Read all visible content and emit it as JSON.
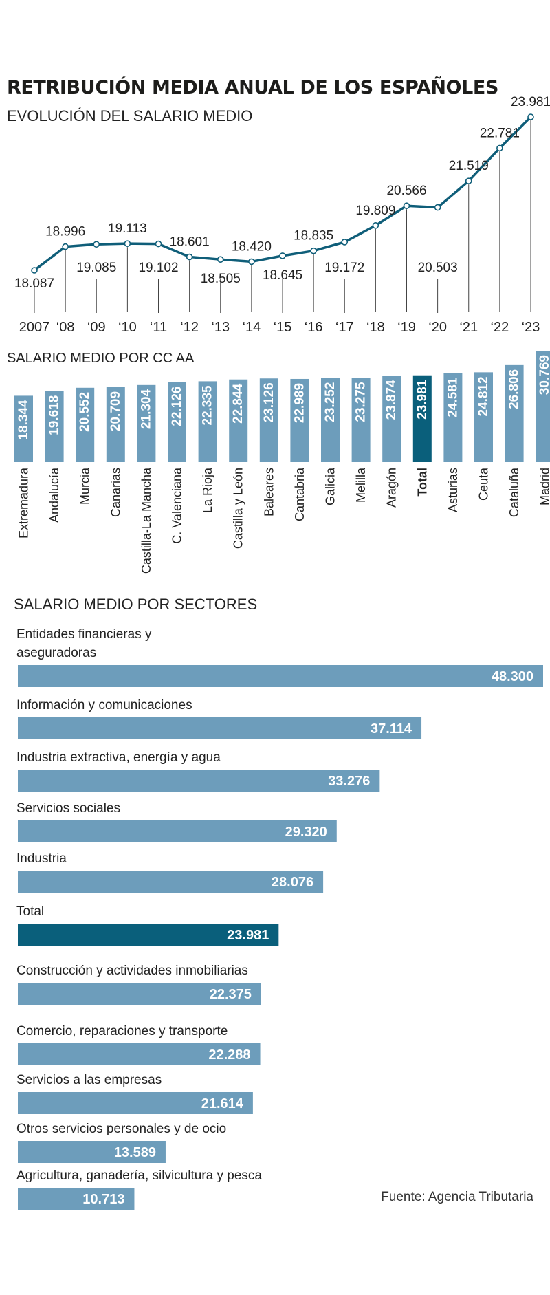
{
  "header": {
    "title": "RETRIBUCIÓN MEDIA ANUAL DE LOS ESPAÑOLES",
    "subtitle": "EVOLUCIÓN DEL SALARIO MEDIO"
  },
  "colors": {
    "line": "#0f5e79",
    "bar": "#6d9dbb",
    "highlight": "#0a5f7b",
    "label_on_bar": "#ffffff",
    "text": "#1d1d1b"
  },
  "source": "Fuente: Agencia Tributaria",
  "chart_data": [
    {
      "type": "line",
      "title": "EVOLUCIÓN DEL SALARIO MEDIO",
      "x": [
        "2007",
        "‘08",
        "‘09",
        "‘10",
        "‘11",
        "‘12",
        "‘13",
        "‘14",
        "‘15",
        "‘16",
        "‘17",
        "‘18",
        "‘19",
        "‘20",
        "‘21",
        "‘22",
        "‘23"
      ],
      "values": [
        18087,
        18996,
        19085,
        19113,
        19102,
        18601,
        18505,
        18420,
        18645,
        18835,
        19172,
        19809,
        20566,
        20503,
        21519,
        22781,
        23981
      ],
      "labels": [
        "18.087",
        "18.996",
        "19.085",
        "19.113",
        "19.102",
        "18.601",
        "18.505",
        "18.420",
        "18.645",
        "18.835",
        "19.172",
        "19.809",
        "20.566",
        "20.503",
        "21.519",
        "22.781",
        "23.981"
      ],
      "label_positions": [
        "below",
        "above",
        "below",
        "above",
        "below",
        "above",
        "below",
        "above",
        "below",
        "above",
        "below",
        "above",
        "above",
        "below",
        "above",
        "above",
        "above"
      ],
      "xlabel": "",
      "ylabel": "",
      "ylim": [
        18000,
        24000
      ]
    },
    {
      "type": "bar",
      "title": "SALARIO MEDIO POR CC AA",
      "orientation": "vertical",
      "categories": [
        "Extremadura",
        "Andalucía",
        "Murcia",
        "Canarias",
        "Castilla-La Mancha",
        "C. Valenciana",
        "La Rioja",
        "Castilla y León",
        "Baleares",
        "Cantabria",
        "Galicia",
        "Melilla",
        "Aragón",
        "Total",
        "Asturias",
        "Ceuta",
        "Cataluña",
        "Madrid"
      ],
      "values": [
        18344,
        19618,
        20552,
        20709,
        21304,
        22126,
        22335,
        22844,
        23126,
        22989,
        23252,
        23275,
        23874,
        23981,
        24581,
        24812,
        26806,
        30769
      ],
      "labels": [
        "18.344",
        "19.618",
        "20.552",
        "20.709",
        "21.304",
        "22.126",
        "22.335",
        "22.844",
        "23.126",
        "22.989",
        "23.252",
        "23.275",
        "23.874",
        "23.981",
        "24.581",
        "24.812",
        "26.806",
        "30.769"
      ],
      "highlight": "Total",
      "ylim": [
        0,
        31000
      ]
    },
    {
      "type": "bar",
      "title": "SALARIO MEDIO POR SECTORES",
      "orientation": "horizontal",
      "categories": [
        "Entidades financieras y aseguradoras",
        "Información y comunicaciones",
        "Industria extractiva, energía y agua",
        "Servicios sociales",
        "Industria",
        "Total",
        "Construcción y actividades inmobiliarias",
        "Comercio, reparaciones y transporte",
        "Servicios a las empresas",
        "Otros servicios personales y de ocio",
        "Agricultura, ganadería, silvicultura y pesca"
      ],
      "category_lines": [
        [
          "Entidades financieras y",
          "aseguradoras"
        ],
        [
          "Información y comunicaciones"
        ],
        [
          "Industria extractiva, energía y agua"
        ],
        [
          "Servicios sociales"
        ],
        [
          "Industria"
        ],
        [
          "Total"
        ],
        [
          "Construcción y actividades inmobiliarias"
        ],
        [
          "Comercio, reparaciones y transporte"
        ],
        [
          "Servicios a las empresas"
        ],
        [
          "Otros servicios personales y de ocio"
        ],
        [
          "Agricultura, ganadería, silvicultura y pesca"
        ]
      ],
      "values": [
        48300,
        37114,
        33276,
        29320,
        28076,
        23981,
        22375,
        22288,
        21614,
        13589,
        10713
      ],
      "labels": [
        "48.300",
        "37.114",
        "33.276",
        "29.320",
        "28.076",
        "23.981",
        "22.375",
        "22.288",
        "21.614",
        "13.589",
        "10.713"
      ],
      "highlight": "Total",
      "xlim": [
        0,
        48300
      ]
    }
  ]
}
